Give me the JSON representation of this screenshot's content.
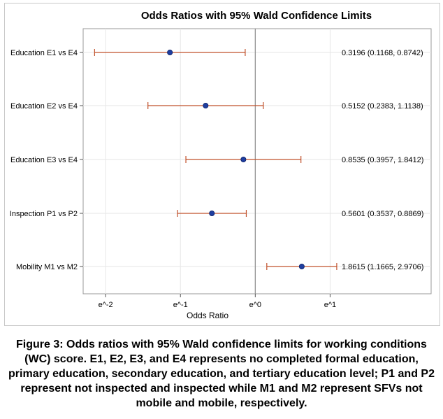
{
  "chart_data": {
    "type": "forest",
    "title": "Odds Ratios with 95% Wald Confidence Limits",
    "xlabel": "Odds Ratio",
    "x_scale": "log",
    "xlim": [
      -2.3,
      2.35
    ],
    "xticks": [
      {
        "value": -2,
        "label": "e^-2"
      },
      {
        "value": -1,
        "label": "e^-1"
      },
      {
        "value": 0,
        "label": "e^0"
      },
      {
        "value": 1,
        "label": "e^1"
      }
    ],
    "reference_line": 1,
    "grid": true,
    "rows": [
      {
        "label": "Education E1 vs E4",
        "estimate": 0.3196,
        "lower": 0.1168,
        "upper": 0.8742,
        "annotation": "0.3196 (0.1168, 0.8742)"
      },
      {
        "label": "Education E2 vs E4",
        "estimate": 0.5152,
        "lower": 0.2383,
        "upper": 1.1138,
        "annotation": "0.5152 (0.2383, 1.1138)"
      },
      {
        "label": "Education E3 vs E4",
        "estimate": 0.8535,
        "lower": 0.3957,
        "upper": 1.8412,
        "annotation": "0.8535 (0.3957, 1.8412)"
      },
      {
        "label": "Inspection P1 vs P2",
        "estimate": 0.5601,
        "lower": 0.3537,
        "upper": 0.8869,
        "annotation": "0.5601 (0.3537, 0.8869)"
      },
      {
        "label": "Mobility M1 vs M2",
        "estimate": 1.8615,
        "lower": 1.1665,
        "upper": 2.9706,
        "annotation": "1.8615 (1.1665, 2.9706)"
      }
    ],
    "colors": {
      "point": "#1f3ea0",
      "interval": "#c0502a",
      "reference": "#8c8c8c",
      "grid": "#e6e6e6",
      "frame": "#9a9a9a"
    }
  },
  "caption": {
    "lines": [
      "Figure 3: Odds ratios with 95% Wald confidence limits for working conditions",
      "(WC) score. E1, E2, E3, and E4 represents no completed formal education,",
      "primary education, secondary education, and tertiary education level; P1 and P2",
      "represent not inspected and inspected while M1 and M2 represent SFVs not",
      "mobile and mobile, respectively."
    ]
  }
}
